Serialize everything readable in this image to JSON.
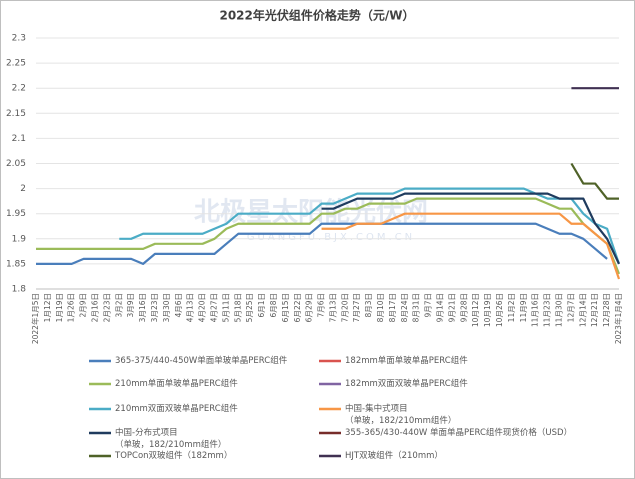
{
  "chart_data": {
    "type": "line",
    "title": "2022年光伏组件价格走势（元/W）",
    "watermark": "北极星太阳能光伏网",
    "watermark_sub": "GUANGFU.BJX.COM.CN",
    "categories": [
      "2022年1月5日",
      "1月12日",
      "1月19日",
      "1月26日",
      "2月9日",
      "2月16日",
      "2月23日",
      "3月2日",
      "3月9日",
      "3月16日",
      "3月23日",
      "3月30日",
      "4月6日",
      "4月13日",
      "4月20日",
      "4月27日",
      "5月11日",
      "5月18日",
      "5月25日",
      "6月1日",
      "6月8日",
      "6月15日",
      "6月22日",
      "6月29日",
      "7月6日",
      "7月13日",
      "7月20日",
      "7月27日",
      "8月3日",
      "8月10日",
      "8月17日",
      "8月24日",
      "8月31日",
      "9月7日",
      "9月14日",
      "9月21日",
      "9月28日",
      "10月12日",
      "10月19日",
      "10月26日",
      "11月2日",
      "11月9日",
      "11月16日",
      "11月23日",
      "11月30日",
      "12月7日",
      "12月14日",
      "12月21日",
      "12月28日",
      "2023年1月4日"
    ],
    "ylim": [
      1.8,
      2.3
    ],
    "yticks": [
      1.8,
      1.85,
      1.9,
      1.95,
      2,
      2.05,
      2.1,
      2.15,
      2.2,
      2.25,
      2.3
    ],
    "grid": true,
    "legend": "bottom",
    "series": [
      {
        "name": "365-375/440-450W单面单玻单晶PERC组件",
        "color": "#4a7ebb",
        "values": [
          1.85,
          1.85,
          1.85,
          1.85,
          1.86,
          1.86,
          1.86,
          1.86,
          1.86,
          1.85,
          1.87,
          1.87,
          1.87,
          1.87,
          1.87,
          1.87,
          1.89,
          1.91,
          1.91,
          1.91,
          1.91,
          1.91,
          1.91,
          1.91,
          1.93,
          1.93,
          1.93,
          1.93,
          1.93,
          1.93,
          1.93,
          1.93,
          1.93,
          1.93,
          1.93,
          1.93,
          1.93,
          1.93,
          1.93,
          1.93,
          1.93,
          1.93,
          1.93,
          1.92,
          1.91,
          1.91,
          1.9,
          1.88,
          1.86,
          null
        ]
      },
      {
        "name": "182mm单面单玻单晶PERC组件",
        "color": "#d9534f",
        "values": [
          null,
          null,
          null,
          null,
          null,
          null,
          null,
          null,
          null,
          null,
          null,
          null,
          null,
          null,
          null,
          null,
          null,
          null,
          null,
          null,
          null,
          null,
          null,
          null,
          null,
          null,
          null,
          null,
          null,
          null,
          null,
          null,
          null,
          null,
          null,
          null,
          null,
          null,
          null,
          null,
          null,
          null,
          null,
          null,
          null,
          null,
          null,
          null,
          null,
          null
        ]
      },
      {
        "name": "210mm单面单玻单晶PERC组件",
        "color": "#9bbb59",
        "values": [
          1.88,
          1.88,
          1.88,
          1.88,
          1.88,
          1.88,
          1.88,
          1.88,
          1.88,
          1.88,
          1.89,
          1.89,
          1.89,
          1.89,
          1.89,
          1.9,
          1.92,
          1.93,
          1.93,
          1.93,
          1.93,
          1.93,
          1.93,
          1.93,
          1.95,
          1.95,
          1.96,
          1.96,
          1.97,
          1.97,
          1.97,
          1.97,
          1.98,
          1.98,
          1.98,
          1.98,
          1.98,
          1.98,
          1.98,
          1.98,
          1.98,
          1.98,
          1.98,
          1.97,
          1.96,
          1.96,
          1.93,
          1.91,
          1.89,
          1.83
        ]
      },
      {
        "name": "182mm双面双玻单晶PERC组件",
        "color": "#8064a2",
        "values": [
          null,
          null,
          null,
          null,
          null,
          null,
          null,
          null,
          null,
          null,
          null,
          null,
          null,
          null,
          null,
          null,
          null,
          null,
          null,
          null,
          null,
          null,
          null,
          null,
          null,
          null,
          null,
          null,
          null,
          null,
          null,
          null,
          null,
          null,
          null,
          null,
          null,
          null,
          null,
          null,
          null,
          null,
          null,
          null,
          null,
          null,
          null,
          null,
          null,
          null
        ]
      },
      {
        "name": "210mm双面双玻单晶PERC组件",
        "color": "#4bacc6",
        "values": [
          null,
          null,
          null,
          null,
          null,
          null,
          null,
          1.9,
          1.9,
          1.91,
          1.91,
          1.91,
          1.91,
          1.91,
          1.91,
          1.92,
          1.93,
          1.95,
          1.95,
          1.95,
          1.95,
          1.95,
          1.95,
          1.95,
          1.97,
          1.97,
          1.98,
          1.99,
          1.99,
          1.99,
          1.99,
          2,
          2,
          2,
          2,
          2,
          2,
          2,
          2,
          2,
          2,
          2,
          1.99,
          1.98,
          1.98,
          1.98,
          1.95,
          1.93,
          1.92,
          1.85
        ]
      },
      {
        "name": "中国-集中式项目\n（单玻，182/210mm组件）",
        "color": "#f79646",
        "values": [
          null,
          null,
          null,
          null,
          null,
          null,
          null,
          null,
          null,
          null,
          null,
          null,
          null,
          null,
          null,
          null,
          null,
          null,
          null,
          null,
          null,
          null,
          null,
          null,
          1.92,
          1.92,
          1.92,
          1.93,
          1.93,
          1.93,
          1.94,
          1.95,
          1.95,
          1.95,
          1.95,
          1.95,
          1.95,
          1.95,
          1.95,
          1.95,
          1.95,
          1.95,
          1.95,
          1.95,
          1.95,
          1.93,
          1.93,
          1.91,
          1.89,
          1.82
        ]
      },
      {
        "name": "中国-分布式项目\n（单玻，182/210mm组件）",
        "color": "#1f3b5e",
        "values": [
          null,
          null,
          null,
          null,
          null,
          null,
          null,
          null,
          null,
          null,
          null,
          null,
          null,
          null,
          null,
          null,
          null,
          null,
          null,
          null,
          null,
          null,
          null,
          null,
          1.96,
          1.96,
          1.97,
          1.98,
          1.98,
          1.98,
          1.98,
          1.99,
          1.99,
          1.99,
          1.99,
          1.99,
          1.99,
          1.99,
          1.99,
          1.99,
          1.99,
          1.99,
          1.99,
          1.99,
          1.98,
          1.98,
          1.98,
          1.93,
          1.9,
          1.85
        ]
      },
      {
        "name": "355-365/430-440W 单面单晶PERC组件现货价格（USD）",
        "color": "#772c2a",
        "values": [
          null,
          null,
          null,
          null,
          null,
          null,
          null,
          null,
          null,
          null,
          null,
          null,
          null,
          null,
          null,
          null,
          null,
          null,
          null,
          null,
          null,
          null,
          null,
          null,
          null,
          null,
          null,
          null,
          null,
          null,
          null,
          null,
          null,
          null,
          null,
          null,
          null,
          null,
          null,
          null,
          null,
          null,
          null,
          null,
          null,
          null,
          null,
          null,
          null,
          null
        ]
      },
      {
        "name": "TOPCon双玻组件（182mm）",
        "color": "#4f6228",
        "values": [
          null,
          null,
          null,
          null,
          null,
          null,
          null,
          null,
          null,
          null,
          null,
          null,
          null,
          null,
          null,
          null,
          null,
          null,
          null,
          null,
          null,
          null,
          null,
          null,
          null,
          null,
          null,
          null,
          null,
          null,
          null,
          null,
          null,
          null,
          null,
          null,
          null,
          null,
          null,
          null,
          null,
          null,
          null,
          null,
          null,
          2.05,
          2.01,
          2.01,
          1.98,
          1.98
        ]
      },
      {
        "name": "HJT双玻组件（210mm）",
        "color": "#403152",
        "values": [
          null,
          null,
          null,
          null,
          null,
          null,
          null,
          null,
          null,
          null,
          null,
          null,
          null,
          null,
          null,
          null,
          null,
          null,
          null,
          null,
          null,
          null,
          null,
          null,
          null,
          null,
          null,
          null,
          null,
          null,
          null,
          null,
          null,
          null,
          null,
          null,
          null,
          null,
          null,
          null,
          null,
          null,
          null,
          null,
          null,
          2.2,
          2.2,
          2.2,
          2.2,
          2.2
        ]
      }
    ]
  }
}
